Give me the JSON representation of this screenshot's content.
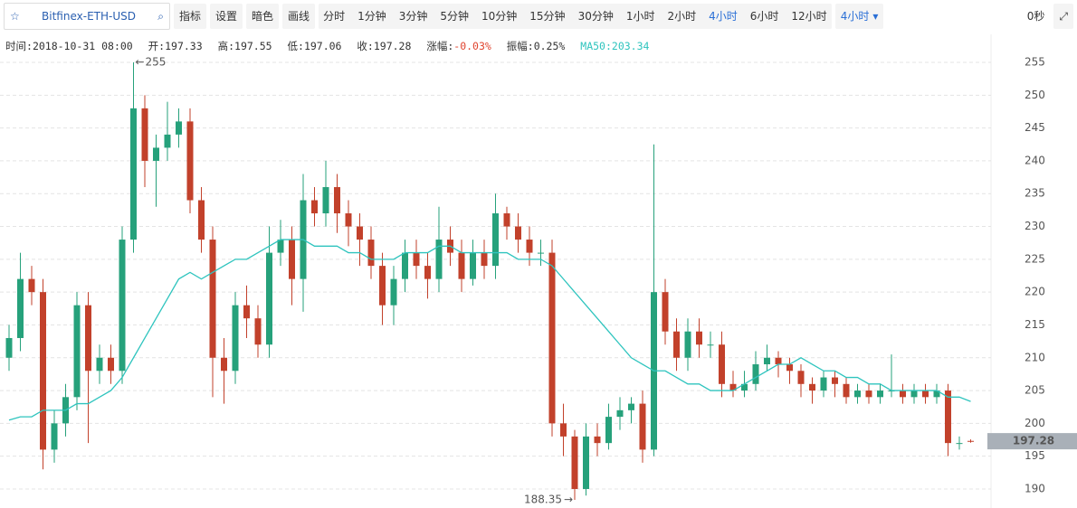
{
  "toolbar": {
    "symbol": "Bitfinex-ETH-USD",
    "buttons": [
      "指标",
      "设置",
      "暗色",
      "画线"
    ],
    "intervals": [
      "分时",
      "1分钟",
      "3分钟",
      "5分钟",
      "10分钟",
      "15分钟",
      "30分钟",
      "1小时",
      "2小时",
      "4小时",
      "6小时",
      "12小时"
    ],
    "active_interval": 9,
    "timer": "0秒"
  },
  "info": {
    "time_label": "时间:",
    "time": "2018-10-31 08:00",
    "open_label": "开:",
    "high_label": "高:",
    "low_label": "低:",
    "close_label": "收:",
    "change_label": "涨幅:",
    "change": "-0.03%",
    "amp_label": "振幅:",
    "amp": "0.25%",
    "ma_label": "MA50:"
  },
  "chart_data": {
    "type": "candlestick",
    "up_color": "#26a17b",
    "down_color": "#c2412b",
    "ma_color": "#2ec4be",
    "grid": true,
    "ylim": [
      188,
      257
    ],
    "yticks": [
      190,
      195,
      200,
      205,
      210,
      215,
      220,
      225,
      230,
      235,
      240,
      245,
      250,
      255
    ],
    "open": [
      210,
      213,
      222,
      220,
      196,
      200,
      204,
      218,
      208,
      210,
      208,
      228,
      248,
      240,
      242,
      244,
      246,
      234,
      228,
      210,
      208,
      218,
      216,
      212,
      226,
      228,
      222,
      234,
      232,
      236,
      232,
      230,
      228,
      224,
      218,
      222,
      226,
      224,
      222,
      228,
      226,
      222,
      226,
      224,
      232,
      230,
      228,
      226,
      226,
      200,
      198,
      190,
      198,
      197,
      201,
      202,
      203,
      196,
      220,
      214,
      210,
      214,
      212,
      212,
      206,
      205,
      206,
      209,
      210,
      209,
      208,
      206,
      205,
      207,
      206,
      204,
      205,
      204,
      205,
      205,
      204,
      205,
      204,
      205,
      197,
      197.33
    ],
    "high": [
      215,
      226,
      224,
      222,
      202,
      206,
      220,
      220,
      212,
      212,
      230,
      255,
      250,
      244,
      249,
      248,
      248,
      236,
      230,
      213,
      220,
      221,
      218,
      230,
      231,
      230,
      238,
      236,
      240,
      238,
      234,
      232,
      230,
      226,
      224,
      228,
      228,
      226,
      233,
      230,
      228,
      228,
      228,
      235,
      233,
      232,
      230,
      228,
      228,
      203,
      199,
      200,
      200,
      203,
      204,
      204,
      205,
      242.5,
      222,
      216,
      216,
      216,
      214,
      214,
      208,
      208,
      211,
      212,
      211,
      210,
      209,
      207,
      208,
      208,
      207,
      206,
      206,
      206,
      210.5,
      206,
      206,
      206,
      206,
      206,
      198,
      197.55
    ],
    "low": [
      208,
      211,
      218,
      193,
      194,
      198,
      202,
      197,
      206,
      206,
      206,
      226,
      236,
      233,
      240,
      242,
      232,
      226,
      204,
      203,
      206,
      213,
      210,
      210,
      224,
      218,
      217,
      230,
      230,
      229,
      227,
      224,
      222,
      215,
      215,
      220,
      222,
      219,
      220,
      224,
      220,
      221,
      222,
      222,
      228,
      226,
      224,
      224,
      198,
      195,
      188.35,
      189,
      195,
      196,
      199,
      200,
      194,
      195,
      212,
      208,
      208,
      210,
      210,
      204,
      204,
      204,
      205,
      208,
      207,
      206,
      204,
      203,
      204,
      204,
      203,
      203,
      203,
      203,
      204,
      203,
      203,
      203,
      203,
      195,
      196,
      197.06
    ],
    "close": [
      213,
      222,
      220,
      196,
      200,
      204,
      218,
      208,
      210,
      208,
      228,
      248,
      240,
      242,
      244,
      246,
      234,
      228,
      210,
      208,
      218,
      216,
      212,
      226,
      228,
      222,
      234,
      232,
      236,
      232,
      230,
      228,
      224,
      218,
      222,
      226,
      224,
      222,
      228,
      226,
      222,
      226,
      224,
      232,
      230,
      228,
      226,
      226,
      200,
      198,
      190,
      198,
      197,
      201,
      202,
      203,
      196,
      220,
      214,
      210,
      214,
      212,
      212,
      206,
      205,
      206,
      209,
      210,
      209,
      208,
      206,
      205,
      207,
      206,
      204,
      205,
      204,
      205,
      205,
      204,
      205,
      204,
      205,
      197,
      197,
      197.28
    ],
    "ma50": [
      200.5,
      201,
      201,
      202,
      202,
      202,
      203,
      203,
      204,
      205,
      207,
      210,
      213,
      216,
      219,
      222,
      223,
      222,
      223,
      224,
      225,
      225,
      226,
      227,
      228,
      228,
      228,
      227,
      227,
      227,
      226,
      226,
      225,
      225,
      225,
      226,
      226,
      226,
      227,
      227,
      226,
      226,
      226,
      226,
      226,
      225,
      225,
      225,
      224,
      222,
      220,
      218,
      216,
      214,
      212,
      210,
      209,
      208,
      208,
      207,
      206,
      206,
      205,
      205,
      205,
      206,
      207,
      208,
      209,
      209,
      210,
      209,
      208,
      208,
      207,
      207,
      206,
      206,
      205,
      205,
      205,
      205,
      205,
      204,
      204,
      203.34
    ]
  }
}
